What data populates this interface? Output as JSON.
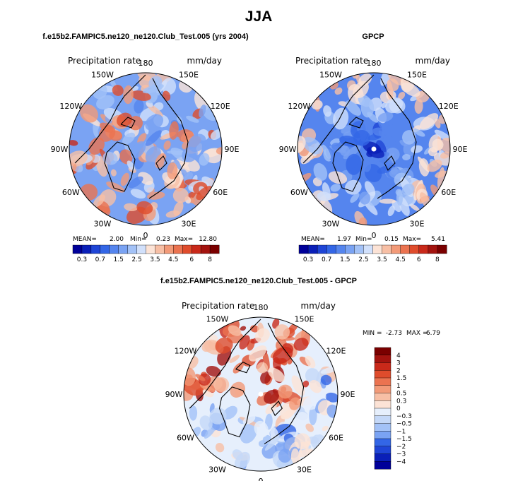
{
  "chart_data": {
    "type": "heatmap",
    "title": "JJA",
    "panels": [
      {
        "id": "model",
        "subtitle": "f.e15b2.FAMPIC5.ne120_ne120.Club_Test.005 (yrs 2004)",
        "variable_label": "Precipitation rate",
        "units_label": "mm/day",
        "longitude_labels": [
          "180",
          "150E",
          "120E",
          "90E",
          "60E",
          "30E",
          "0",
          "30W",
          "60W",
          "90W",
          "120W",
          "150W"
        ],
        "stats": {
          "mean_label": "MEAN=",
          "mean": "2.00",
          "min_label": "Min=",
          "min": "0.23",
          "max_label": "Max=",
          "max": "12.80"
        },
        "colorbar": {
          "orientation": "horizontal",
          "tick_labels": [
            "0.3",
            "0.7",
            "1.5",
            "2.5",
            "3.5",
            "4.5",
            "6",
            "8"
          ],
          "colors": [
            "#000099",
            "#0a1fb8",
            "#1f45d6",
            "#3366e6",
            "#5585ee",
            "#7aa3f3",
            "#a3c2f7",
            "#d1e0fb",
            "#fce3d6",
            "#f7bfa5",
            "#f29a78",
            "#eb7350",
            "#df4c2c",
            "#c9291a",
            "#a3130f",
            "#7a0000"
          ]
        },
        "pole_marker": false
      },
      {
        "id": "obs",
        "subtitle": "GPCP",
        "variable_label": "Precipitation rate",
        "units_label": "mm/day",
        "longitude_labels": [
          "180",
          "150E",
          "120E",
          "90E",
          "60E",
          "30E",
          "0",
          "30W",
          "60W",
          "90W",
          "120W",
          "150W"
        ],
        "stats": {
          "mean_label": "MEAN=",
          "mean": "1.97",
          "min_label": "Min=",
          "min": "0.15",
          "max_label": "Max=",
          "max": "5.41"
        },
        "colorbar": {
          "orientation": "horizontal",
          "tick_labels": [
            "0.3",
            "0.7",
            "1.5",
            "2.5",
            "3.5",
            "4.5",
            "6",
            "8"
          ],
          "colors": [
            "#000099",
            "#0a1fb8",
            "#1f45d6",
            "#3366e6",
            "#5585ee",
            "#7aa3f3",
            "#a3c2f7",
            "#d1e0fb",
            "#fce3d6",
            "#f7bfa5",
            "#f29a78",
            "#eb7350",
            "#df4c2c",
            "#c9291a",
            "#a3130f",
            "#7a0000"
          ]
        },
        "pole_marker": true
      },
      {
        "id": "diff",
        "subtitle": "f.e15b2.FAMPIC5.ne120_ne120.Club_Test.005 - GPCP",
        "variable_label": "Precipitation rate",
        "units_label": "mm/day",
        "longitude_labels": [
          "180",
          "150E",
          "120E",
          "90E",
          "60E",
          "30E",
          "0",
          "30W",
          "60W",
          "90W",
          "120W",
          "150W"
        ],
        "stats": {
          "min_label": "MIN =",
          "min": "-2.73",
          "max_label": "MAX =",
          "max": "6.79"
        },
        "colorbar": {
          "orientation": "vertical",
          "tick_labels": [
            "4",
            "3",
            "2",
            "1.5",
            "1",
            "0.5",
            "0.3",
            "0",
            "−0.3",
            "−0.5",
            "−1",
            "−1.5",
            "−2",
            "−3",
            "−4"
          ],
          "colors": [
            "#7a0000",
            "#a3130f",
            "#c9291a",
            "#df4c2c",
            "#eb7350",
            "#f29a78",
            "#f7bfa5",
            "#fce3d6",
            "#e6effc",
            "#c4d8f8",
            "#a3c2f7",
            "#7aa3f3",
            "#3366e6",
            "#1f45d6",
            "#0a1fb8",
            "#000099"
          ]
        },
        "pole_marker": true
      }
    ]
  }
}
